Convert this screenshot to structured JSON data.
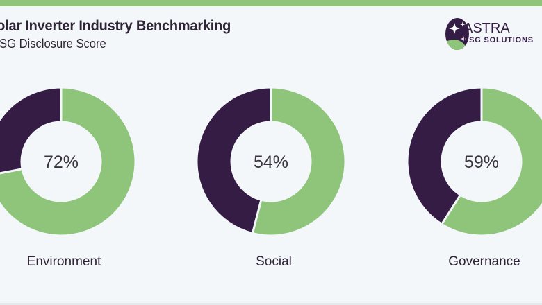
{
  "header": {
    "title": "Solar Inverter Industry Benchmarking",
    "subtitle": "ESG Disclosure Score"
  },
  "logo": {
    "name": "ASTRA",
    "tagline": "ESG SOLUTIONS"
  },
  "colors": {
    "score": "#8fc57a",
    "remainder": "#341c45",
    "accent_bar": "#8fc57a"
  },
  "chart_data": {
    "type": "pie",
    "title": "ESG Disclosure Score",
    "charts": [
      {
        "category": "Environment",
        "value": 72,
        "label": "72%"
      },
      {
        "category": "Social",
        "value": 54,
        "label": "54%"
      },
      {
        "category": "Governance",
        "value": 59,
        "label": "59%"
      }
    ],
    "max": 100
  }
}
